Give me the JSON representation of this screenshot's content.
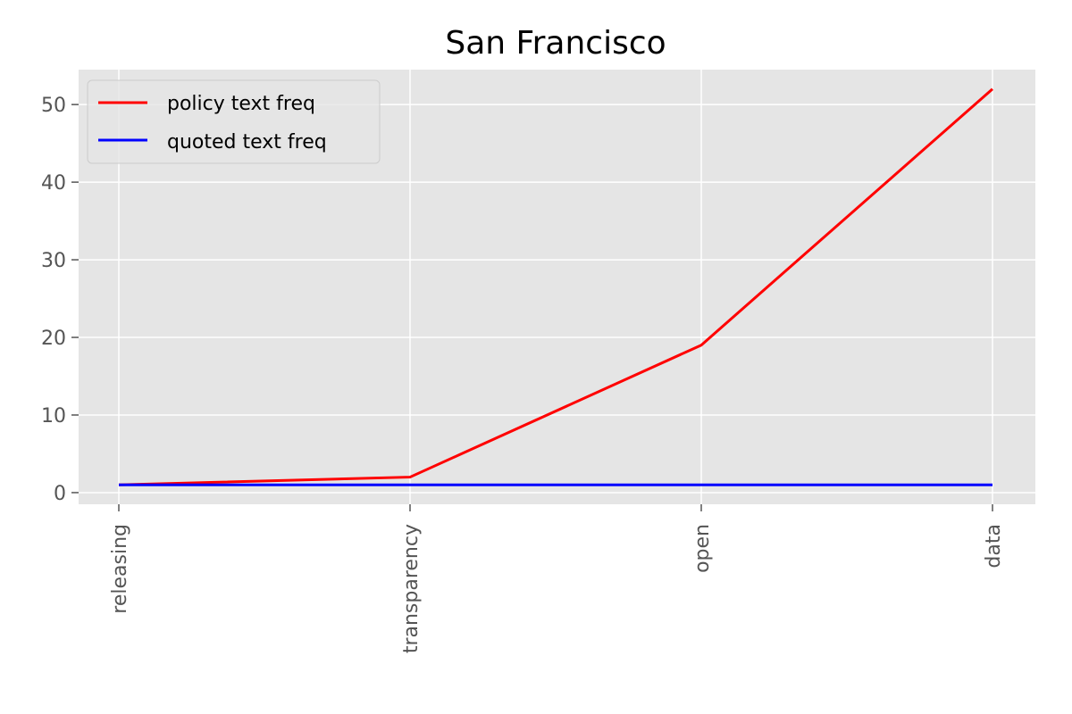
{
  "chart_data": {
    "type": "line",
    "title": "San Francisco",
    "xlabel": "",
    "ylabel": "",
    "categories": [
      "releasing",
      "transparency",
      "open",
      "data"
    ],
    "series": [
      {
        "name": "policy text freq",
        "values": [
          1,
          2,
          19,
          52
        ],
        "color": "#ff0000"
      },
      {
        "name": "quoted text freq",
        "values": [
          1,
          1,
          1,
          1
        ],
        "color": "#0000ff"
      }
    ],
    "ylim": [
      -1.5,
      54.5
    ],
    "yticks": [
      0,
      10,
      20,
      30,
      40,
      50
    ],
    "grid": true,
    "legend": "top-left",
    "colors": {
      "plot_background": "#e5e5e5",
      "grid": "#ffffff"
    }
  }
}
